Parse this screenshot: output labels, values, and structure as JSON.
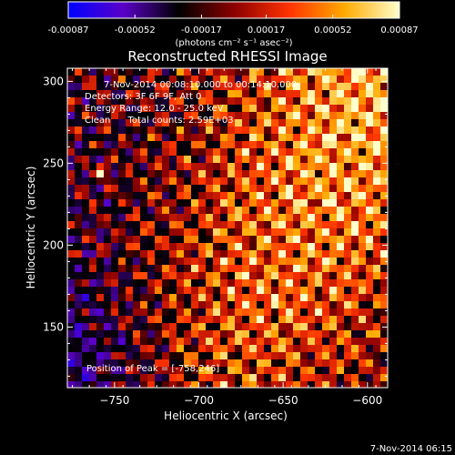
{
  "colorbar": {
    "tick_labels": [
      "-0.00087",
      "-0.00052",
      "-0.00017",
      "0.00017",
      "0.00052",
      "0.00087"
    ],
    "tick_values": [
      -0.00087,
      -0.00052,
      -0.00017,
      0.00017,
      0.00052,
      0.00087
    ],
    "range": [
      -0.00087,
      0.00087
    ],
    "units_label": "(photons cm⁻² s⁻¹ asec⁻²)",
    "colors": [
      "#0000ff",
      "#5a00c8",
      "#000000",
      "#8b0000",
      "#ff3300",
      "#ffaa00",
      "#ffffcc"
    ]
  },
  "image": {
    "title": "Reconstructed RHESSI Image",
    "info": [
      "7-Nov-2014 00:08:10.000 to 00:14:10.000",
      "Detectors: 3F 6F 9F, Att 0",
      "Energy Range: 12.0 - 25.0 keV",
      "Clean      Total counts: 2.59E+03"
    ],
    "peak_text": "Position of Peak = [-758,246]",
    "footer_timestamp": "7-Nov-2014 06:15"
  },
  "chart_data": {
    "type": "heatmap",
    "title": "Reconstructed RHESSI Image",
    "xlabel": "Heliocentric X (arcsec)",
    "ylabel": "Heliocentric Y (arcsec)",
    "xlim": [
      -778,
      -588
    ],
    "ylim": [
      113,
      308
    ],
    "x_ticks": [
      -750,
      -700,
      -650,
      -600
    ],
    "x_tick_labels": [
      "−750",
      "−700",
      "−650",
      "−600"
    ],
    "y_ticks": [
      150,
      200,
      250,
      300
    ],
    "y_tick_labels": [
      "150",
      "200",
      "250",
      "300"
    ],
    "peak": [
      -758,
      246
    ],
    "value_range": [
      -0.00087,
      0.00087
    ]
  }
}
